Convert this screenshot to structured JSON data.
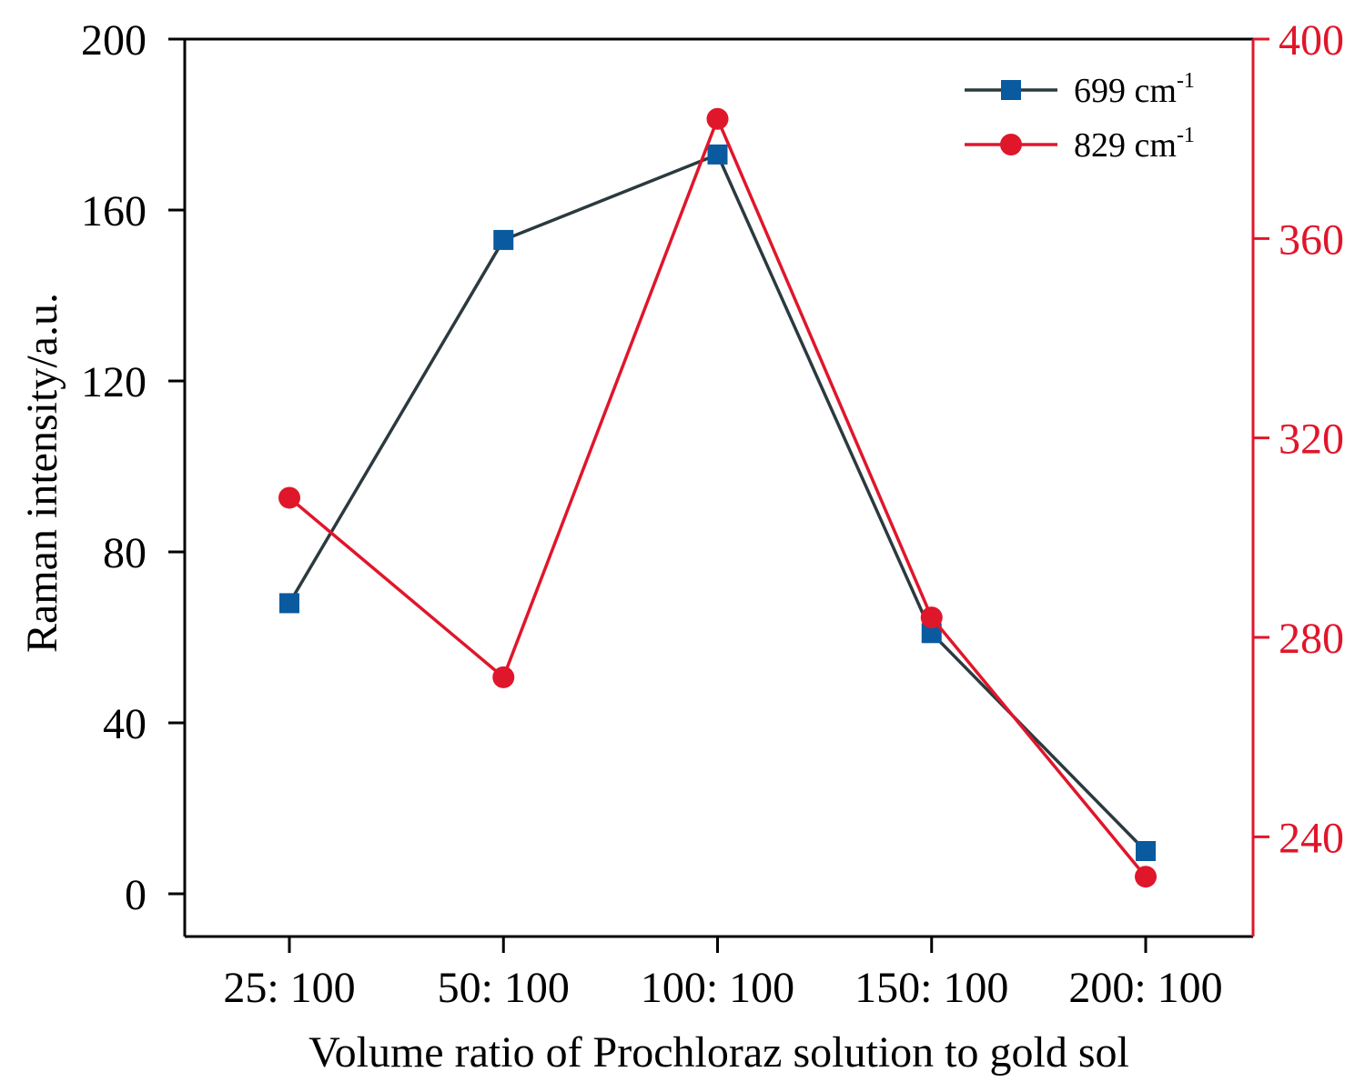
{
  "chart_data": {
    "type": "line",
    "xlabel": "Volume ratio of Prochloraz solution to gold sol",
    "ylabel_left": "Raman intensity/a.u.",
    "ylabel_right": "",
    "categories": [
      "25: 100",
      "50: 100",
      "100: 100",
      "150: 100",
      "200: 100"
    ],
    "ylim_left": [
      -10,
      200
    ],
    "ylim_right": [
      220,
      400
    ],
    "yticks_left": [
      0,
      40,
      80,
      120,
      160,
      200
    ],
    "yticks_right": [
      240,
      280,
      320,
      360,
      400
    ],
    "grid": false,
    "legend_position": "top-right",
    "series": [
      {
        "name": "699 cm",
        "name_sup": "-1",
        "axis": "left",
        "marker": "square",
        "line_color": "#2b3a3f",
        "marker_color": "#0a5aa0",
        "values": [
          68,
          153,
          173,
          61,
          10
        ]
      },
      {
        "name": "829 cm",
        "name_sup": "-1",
        "axis": "right",
        "marker": "circle",
        "line_color": "#e0162b",
        "marker_color": "#e0162b",
        "values": [
          308,
          272,
          384,
          284,
          232
        ]
      }
    ],
    "colors": {
      "left_axis": "#000000",
      "right_axis": "#e0162b"
    }
  }
}
